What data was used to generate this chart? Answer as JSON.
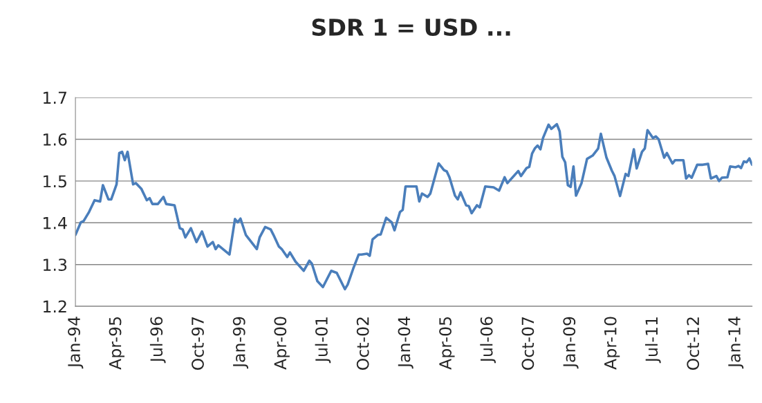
{
  "chart_data": {
    "type": "line",
    "title": "SDR 1 = USD ...",
    "x": [
      "1994-01",
      "1994-03",
      "1994-04",
      "1994-06",
      "1994-08",
      "1994-10",
      "1994-11",
      "1995-01",
      "1995-02",
      "1995-04",
      "1995-05",
      "1995-06",
      "1995-07",
      "1995-08",
      "1995-10",
      "1995-11",
      "1996-01",
      "1996-03",
      "1996-04",
      "1996-05",
      "1996-07",
      "1996-09",
      "1996-10",
      "1997-01",
      "1997-03",
      "1997-04",
      "1997-05",
      "1997-07",
      "1997-09",
      "1997-11",
      "1998-01",
      "1998-03",
      "1998-04",
      "1998-05",
      "1998-09",
      "1998-11",
      "1998-12",
      "1999-01",
      "1999-03",
      "1999-05",
      "1999-07",
      "1999-08",
      "1999-10",
      "1999-12",
      "2000-01",
      "2000-03",
      "2000-04",
      "2000-06",
      "2000-07",
      "2000-09",
      "2000-12",
      "2001-02",
      "2001-03",
      "2001-05",
      "2001-07",
      "2001-10",
      "2001-12",
      "2002-03",
      "2002-04",
      "2002-06",
      "2002-08",
      "2002-09",
      "2002-11",
      "2002-12",
      "2003-01",
      "2003-03",
      "2003-04",
      "2003-06",
      "2003-08",
      "2003-09",
      "2003-11",
      "2003-12",
      "2004-01",
      "2004-03",
      "2004-05",
      "2004-06",
      "2004-07",
      "2004-09",
      "2004-10",
      "2005-01",
      "2005-02",
      "2005-03",
      "2005-04",
      "2005-05",
      "2005-07",
      "2005-08",
      "2005-09",
      "2005-11",
      "2005-12",
      "2006-01",
      "2006-03",
      "2006-04",
      "2006-06",
      "2006-09",
      "2006-11",
      "2007-01",
      "2007-02",
      "2007-06",
      "2007-07",
      "2007-09",
      "2007-10",
      "2007-11",
      "2007-12",
      "2008-01",
      "2008-02",
      "2008-03",
      "2008-05",
      "2008-06",
      "2008-08",
      "2008-09",
      "2008-10",
      "2008-11",
      "2008-12",
      "2009-01",
      "2009-02",
      "2009-03",
      "2009-05",
      "2009-07",
      "2009-09",
      "2009-11",
      "2009-12",
      "2010-02",
      "2010-04",
      "2010-05",
      "2010-07",
      "2010-09",
      "2010-10",
      "2010-12",
      "2011-01",
      "2011-03",
      "2011-04",
      "2011-05",
      "2011-07",
      "2011-08",
      "2011-09",
      "2011-11",
      "2011-12",
      "2012-02",
      "2012-03",
      "2012-06",
      "2012-07",
      "2012-08",
      "2012-09",
      "2012-11",
      "2013-01",
      "2013-03",
      "2013-04",
      "2013-06",
      "2013-07",
      "2013-08",
      "2013-10",
      "2013-11",
      "2014-01",
      "2014-02",
      "2014-03",
      "2014-04",
      "2014-05",
      "2014-06",
      "2014-07"
    ],
    "series": [
      {
        "color": "#4a7ebb",
        "values": [
          1.371,
          1.401,
          1.404,
          1.426,
          1.454,
          1.451,
          1.49,
          1.456,
          1.456,
          1.492,
          1.567,
          1.57,
          1.55,
          1.57,
          1.492,
          1.495,
          1.481,
          1.454,
          1.459,
          1.445,
          1.445,
          1.462,
          1.445,
          1.442,
          1.387,
          1.384,
          1.365,
          1.387,
          1.354,
          1.379,
          1.343,
          1.354,
          1.337,
          1.346,
          1.324,
          1.409,
          1.401,
          1.41,
          1.371,
          1.354,
          1.337,
          1.365,
          1.39,
          1.384,
          1.371,
          1.343,
          1.337,
          1.318,
          1.329,
          1.307,
          1.285,
          1.309,
          1.302,
          1.26,
          1.246,
          1.285,
          1.28,
          1.241,
          1.252,
          1.29,
          1.324,
          1.324,
          1.326,
          1.321,
          1.36,
          1.371,
          1.372,
          1.412,
          1.401,
          1.382,
          1.426,
          1.431,
          1.487,
          1.487,
          1.487,
          1.451,
          1.47,
          1.462,
          1.47,
          1.542,
          1.534,
          1.526,
          1.523,
          1.509,
          1.465,
          1.456,
          1.473,
          1.442,
          1.44,
          1.423,
          1.442,
          1.437,
          1.487,
          1.485,
          1.477,
          1.509,
          1.495,
          1.524,
          1.512,
          1.531,
          1.534,
          1.566,
          1.578,
          1.585,
          1.576,
          1.603,
          1.635,
          1.625,
          1.636,
          1.619,
          1.558,
          1.545,
          1.49,
          1.486,
          1.535,
          1.465,
          1.495,
          1.553,
          1.561,
          1.578,
          1.613,
          1.556,
          1.525,
          1.512,
          1.464,
          1.517,
          1.512,
          1.576,
          1.53,
          1.57,
          1.578,
          1.622,
          1.603,
          1.607,
          1.6,
          1.556,
          1.567,
          1.542,
          1.55,
          1.55,
          1.506,
          1.514,
          1.508,
          1.539,
          1.539,
          1.541,
          1.506,
          1.512,
          1.5,
          1.508,
          1.509,
          1.535,
          1.533,
          1.536,
          1.531,
          1.547,
          1.545,
          1.554,
          1.539
        ]
      }
    ],
    "xlim": [
      "1994-01",
      "2014-07"
    ],
    "xticks": [
      {
        "value": "1994-01",
        "label": "Jan-94"
      },
      {
        "value": "1995-04",
        "label": "Apr-95"
      },
      {
        "value": "1996-07",
        "label": "Jul-96"
      },
      {
        "value": "1997-10",
        "label": "Oct-97"
      },
      {
        "value": "1999-01",
        "label": "Jan-99"
      },
      {
        "value": "2000-04",
        "label": "Apr-00"
      },
      {
        "value": "2001-07",
        "label": "Jul-01"
      },
      {
        "value": "2002-10",
        "label": "Oct-02"
      },
      {
        "value": "2004-01",
        "label": "Jan-04"
      },
      {
        "value": "2005-04",
        "label": "Apr-05"
      },
      {
        "value": "2006-07",
        "label": "Jul-06"
      },
      {
        "value": "2007-10",
        "label": "Oct-07"
      },
      {
        "value": "2009-01",
        "label": "Jan-09"
      },
      {
        "value": "2010-04",
        "label": "Apr-10"
      },
      {
        "value": "2011-07",
        "label": "Jul-11"
      },
      {
        "value": "2012-10",
        "label": "Oct-12"
      },
      {
        "value": "2014-01",
        "label": "Jan-14"
      }
    ],
    "ylim": [
      1.2,
      1.7
    ],
    "yticks": [
      {
        "value": 1.2,
        "label": "1.2"
      },
      {
        "value": 1.3,
        "label": "1.3"
      },
      {
        "value": 1.4,
        "label": "1.4"
      },
      {
        "value": 1.5,
        "label": "1.5"
      },
      {
        "value": 1.6,
        "label": "1.6"
      },
      {
        "value": 1.7,
        "label": "1.7"
      }
    ],
    "grid": "y",
    "marker": "none",
    "line_style": "solid"
  }
}
